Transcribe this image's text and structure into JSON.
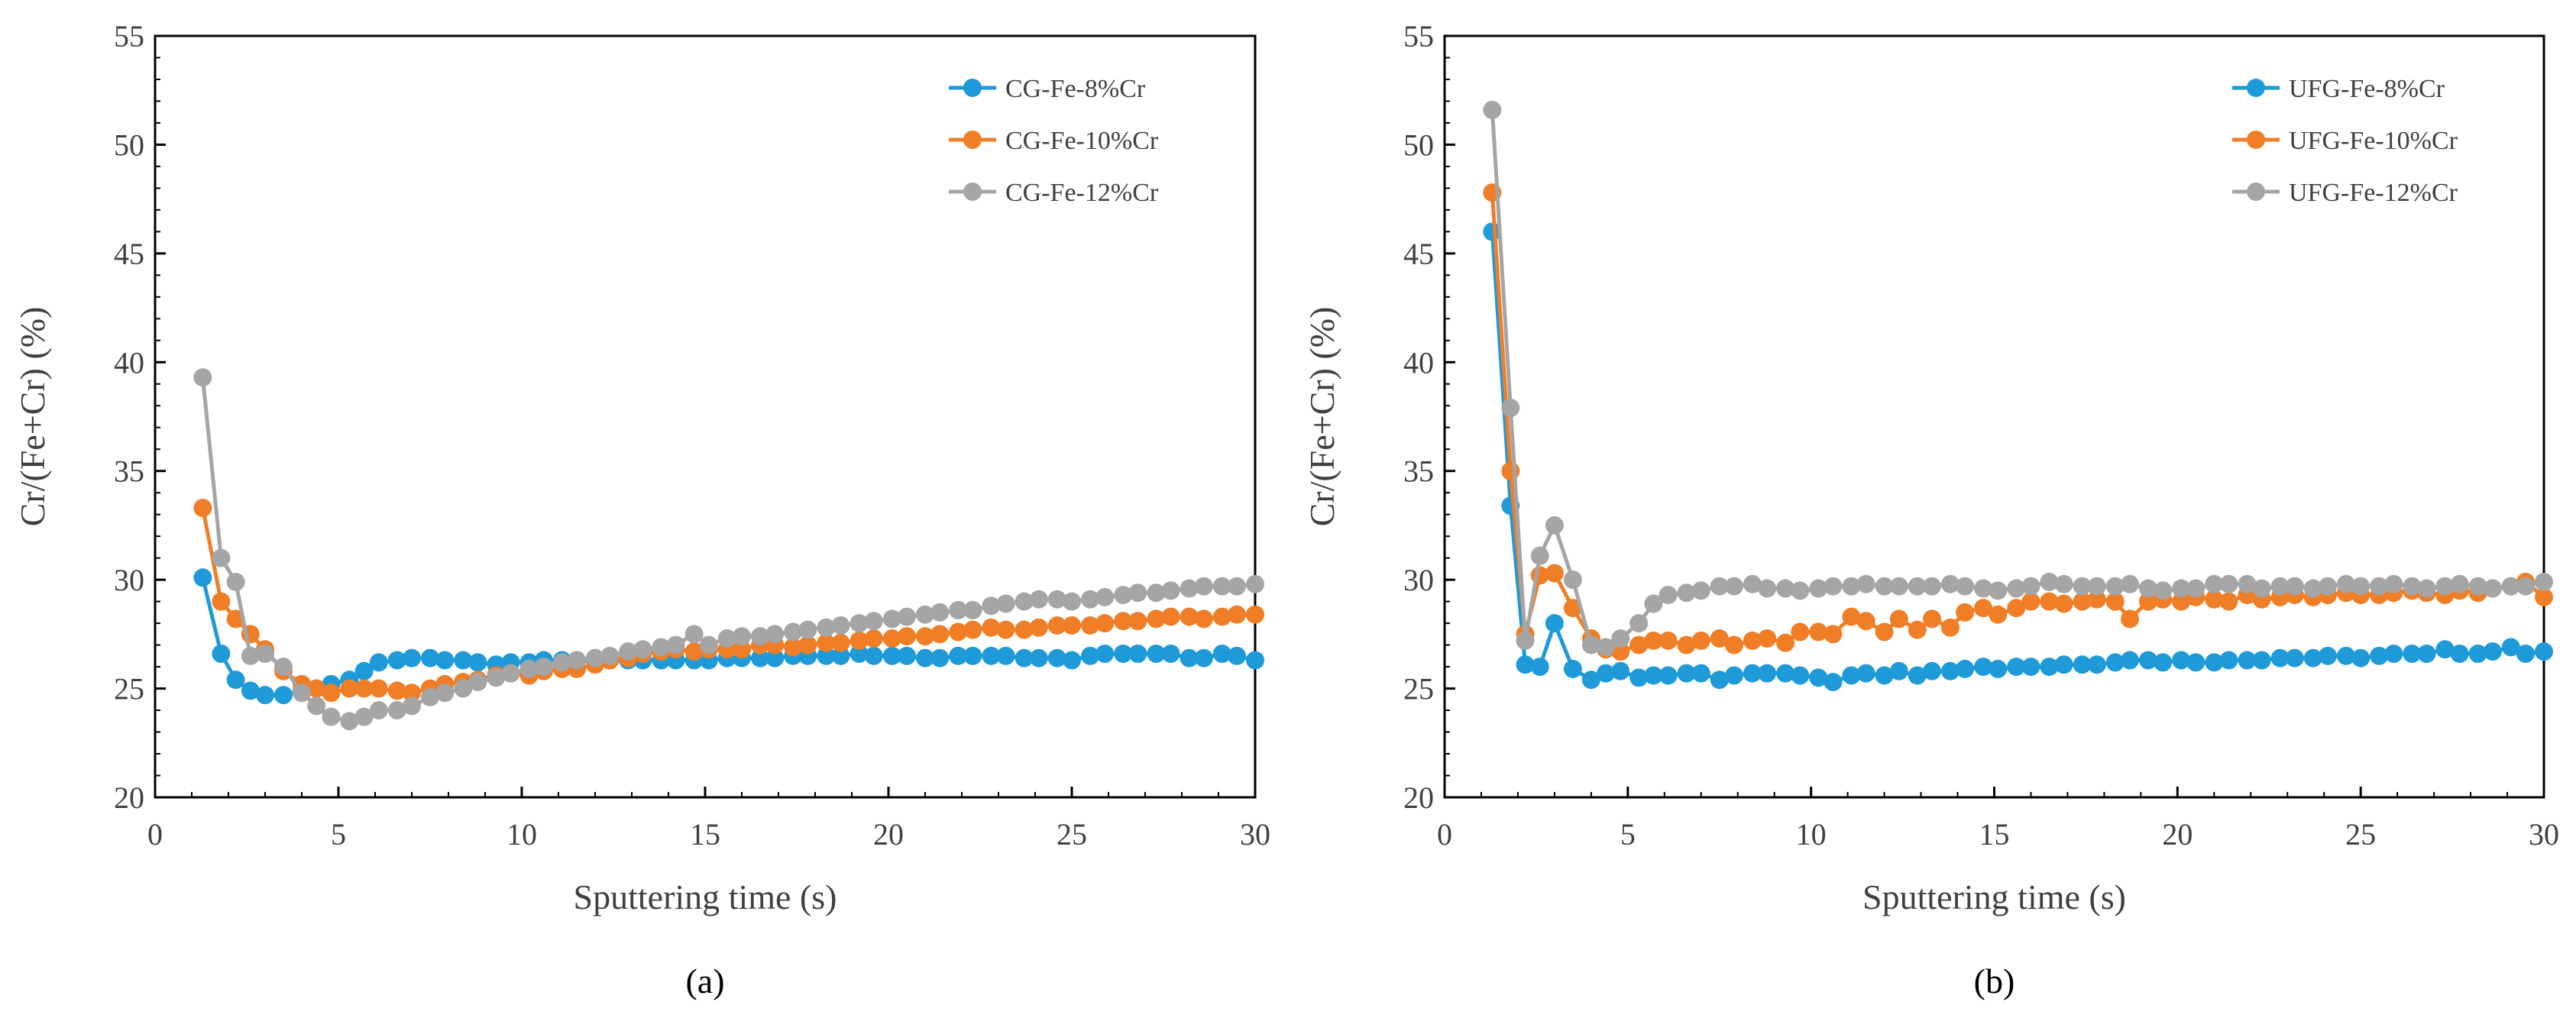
{
  "chart_data": [
    {
      "type": "line",
      "caption": "(a)",
      "xlabel": "Sputtering time (s)",
      "ylabel": "Cr/(Fe+Cr) (%)",
      "xlim": [
        0,
        30
      ],
      "ylim": [
        20,
        55
      ],
      "xticks": [
        0,
        5,
        10,
        15,
        20,
        25,
        30
      ],
      "yticks": [
        20,
        25,
        30,
        35,
        40,
        45,
        50,
        55
      ],
      "legend_position": "top-right",
      "x": [
        1.3,
        1.8,
        2.2,
        2.6,
        3.0,
        3.5,
        4.0,
        4.4,
        4.8,
        5.3,
        5.7,
        6.1,
        6.6,
        7.0,
        7.5,
        7.9,
        8.4,
        8.8,
        9.3,
        9.7,
        10.2,
        10.6,
        11.1,
        11.5,
        12.0,
        12.4,
        12.9,
        13.3,
        13.8,
        14.2,
        14.7,
        15.1,
        15.6,
        16.0,
        16.5,
        16.9,
        17.4,
        17.8,
        18.3,
        18.7,
        19.2,
        19.6,
        20.1,
        20.5,
        21.0,
        21.4,
        21.9,
        22.3,
        22.8,
        23.2,
        23.7,
        24.1,
        24.6,
        25.0,
        25.5,
        25.9,
        26.4,
        26.8,
        27.3,
        27.7,
        28.2,
        28.6,
        29.1,
        29.5,
        30.0
      ],
      "series": [
        {
          "name": "CG-Fe-8%Cr",
          "color": "#1f9ad9",
          "values": [
            30.1,
            26.6,
            25.4,
            24.9,
            24.7,
            24.7,
            24.9,
            25.0,
            25.2,
            25.4,
            25.8,
            26.2,
            26.3,
            26.4,
            26.4,
            26.3,
            26.3,
            26.2,
            26.1,
            26.2,
            26.2,
            26.3,
            26.3,
            26.3,
            26.3,
            26.3,
            26.3,
            26.3,
            26.3,
            26.3,
            26.3,
            26.3,
            26.4,
            26.4,
            26.4,
            26.4,
            26.5,
            26.5,
            26.5,
            26.5,
            26.6,
            26.5,
            26.5,
            26.5,
            26.4,
            26.4,
            26.5,
            26.5,
            26.5,
            26.5,
            26.4,
            26.4,
            26.4,
            26.3,
            26.5,
            26.6,
            26.6,
            26.6,
            26.6,
            26.6,
            26.4,
            26.4,
            26.6,
            26.5,
            26.3
          ]
        },
        {
          "name": "CG-Fe-10%Cr",
          "color": "#f07e26",
          "values": [
            33.3,
            29.0,
            28.2,
            27.5,
            26.8,
            25.8,
            25.2,
            25.0,
            24.8,
            25.0,
            25.0,
            25.0,
            24.9,
            24.8,
            25.0,
            25.2,
            25.3,
            25.4,
            25.6,
            25.7,
            25.6,
            25.8,
            25.9,
            25.9,
            26.1,
            26.3,
            26.4,
            26.6,
            26.7,
            26.8,
            26.7,
            26.8,
            26.8,
            26.8,
            27.0,
            27.0,
            26.9,
            27.0,
            27.1,
            27.1,
            27.2,
            27.3,
            27.3,
            27.4,
            27.4,
            27.5,
            27.6,
            27.7,
            27.8,
            27.7,
            27.7,
            27.8,
            27.9,
            27.9,
            27.9,
            28.0,
            28.1,
            28.1,
            28.2,
            28.3,
            28.3,
            28.2,
            28.3,
            28.4,
            28.4
          ]
        },
        {
          "name": "CG-Fe-12%Cr",
          "color": "#a5a5a5",
          "values": [
            39.3,
            31.0,
            29.9,
            26.5,
            26.6,
            26.0,
            24.8,
            24.2,
            23.7,
            23.5,
            23.7,
            24.0,
            24.0,
            24.2,
            24.6,
            24.8,
            25.0,
            25.3,
            25.5,
            25.7,
            25.9,
            26.0,
            26.2,
            26.3,
            26.4,
            26.5,
            26.7,
            26.8,
            26.9,
            27.0,
            27.5,
            27.0,
            27.3,
            27.4,
            27.4,
            27.5,
            27.6,
            27.7,
            27.8,
            27.9,
            28.0,
            28.1,
            28.2,
            28.3,
            28.4,
            28.5,
            28.6,
            28.6,
            28.8,
            28.9,
            29.0,
            29.1,
            29.1,
            29.0,
            29.1,
            29.2,
            29.3,
            29.4,
            29.4,
            29.5,
            29.6,
            29.7,
            29.7,
            29.7,
            29.8
          ]
        }
      ]
    },
    {
      "type": "line",
      "caption": "(b)",
      "xlabel": "Sputtering time (s)",
      "ylabel": "Cr/(Fe+Cr) (%)",
      "xlim": [
        0,
        30
      ],
      "ylim": [
        20,
        55
      ],
      "xticks": [
        0,
        5,
        10,
        15,
        20,
        25,
        30
      ],
      "yticks": [
        20,
        25,
        30,
        35,
        40,
        45,
        50,
        55
      ],
      "legend_position": "top-right",
      "x": [
        1.3,
        1.8,
        2.2,
        2.6,
        3.0,
        3.5,
        4.0,
        4.4,
        4.8,
        5.3,
        5.7,
        6.1,
        6.6,
        7.0,
        7.5,
        7.9,
        8.4,
        8.8,
        9.3,
        9.7,
        10.2,
        10.6,
        11.1,
        11.5,
        12.0,
        12.4,
        12.9,
        13.3,
        13.8,
        14.2,
        14.7,
        15.1,
        15.6,
        16.0,
        16.5,
        16.9,
        17.4,
        17.8,
        18.3,
        18.7,
        19.2,
        19.6,
        20.1,
        20.5,
        21.0,
        21.4,
        21.9,
        22.3,
        22.8,
        23.2,
        23.7,
        24.1,
        24.6,
        25.0,
        25.5,
        25.9,
        26.4,
        26.8,
        27.3,
        27.7,
        28.2,
        28.6,
        29.1,
        29.5,
        30.0
      ],
      "series": [
        {
          "name": "UFG-Fe-8%Cr",
          "color": "#1f9ad9",
          "values": [
            46.0,
            33.4,
            26.1,
            26.0,
            28.0,
            25.9,
            25.4,
            25.7,
            25.8,
            25.5,
            25.6,
            25.6,
            25.7,
            25.7,
            25.4,
            25.6,
            25.7,
            25.7,
            25.7,
            25.6,
            25.5,
            25.3,
            25.6,
            25.7,
            25.6,
            25.8,
            25.6,
            25.8,
            25.8,
            25.9,
            26.0,
            25.9,
            26.0,
            26.0,
            26.0,
            26.1,
            26.1,
            26.1,
            26.2,
            26.3,
            26.3,
            26.2,
            26.3,
            26.2,
            26.2,
            26.3,
            26.3,
            26.3,
            26.4,
            26.4,
            26.4,
            26.5,
            26.5,
            26.4,
            26.5,
            26.6,
            26.6,
            26.6,
            26.8,
            26.6,
            26.6,
            26.7,
            26.9,
            26.6,
            26.7
          ]
        },
        {
          "name": "UFG-Fe-10%Cr",
          "color": "#f07e26",
          "values": [
            47.8,
            35.0,
            27.5,
            30.2,
            30.3,
            28.7,
            27.3,
            26.8,
            26.7,
            27.0,
            27.2,
            27.2,
            27.0,
            27.2,
            27.3,
            27.0,
            27.2,
            27.3,
            27.1,
            27.6,
            27.6,
            27.5,
            28.3,
            28.1,
            27.6,
            28.2,
            27.7,
            28.2,
            27.8,
            28.5,
            28.7,
            28.4,
            28.7,
            29.0,
            29.0,
            28.9,
            29.0,
            29.1,
            29.0,
            28.2,
            29.0,
            29.1,
            29.0,
            29.2,
            29.1,
            29.0,
            29.3,
            29.1,
            29.2,
            29.3,
            29.2,
            29.3,
            29.4,
            29.3,
            29.3,
            29.4,
            29.5,
            29.4,
            29.3,
            29.5,
            29.4,
            29.6,
            29.7,
            29.9,
            29.2
          ]
        },
        {
          "name": "UFG-Fe-12%Cr",
          "color": "#a5a5a5",
          "values": [
            51.6,
            37.9,
            27.2,
            31.1,
            32.5,
            30.0,
            27.0,
            26.9,
            27.3,
            28.0,
            28.9,
            29.3,
            29.4,
            29.5,
            29.7,
            29.7,
            29.8,
            29.6,
            29.6,
            29.5,
            29.6,
            29.7,
            29.7,
            29.8,
            29.7,
            29.7,
            29.7,
            29.7,
            29.8,
            29.7,
            29.6,
            29.5,
            29.6,
            29.7,
            29.9,
            29.8,
            29.7,
            29.7,
            29.7,
            29.8,
            29.6,
            29.5,
            29.6,
            29.6,
            29.8,
            29.8,
            29.8,
            29.6,
            29.7,
            29.7,
            29.6,
            29.7,
            29.8,
            29.7,
            29.7,
            29.8,
            29.7,
            29.6,
            29.7,
            29.8,
            29.7,
            29.6,
            29.7,
            29.7,
            29.9
          ]
        }
      ]
    }
  ]
}
